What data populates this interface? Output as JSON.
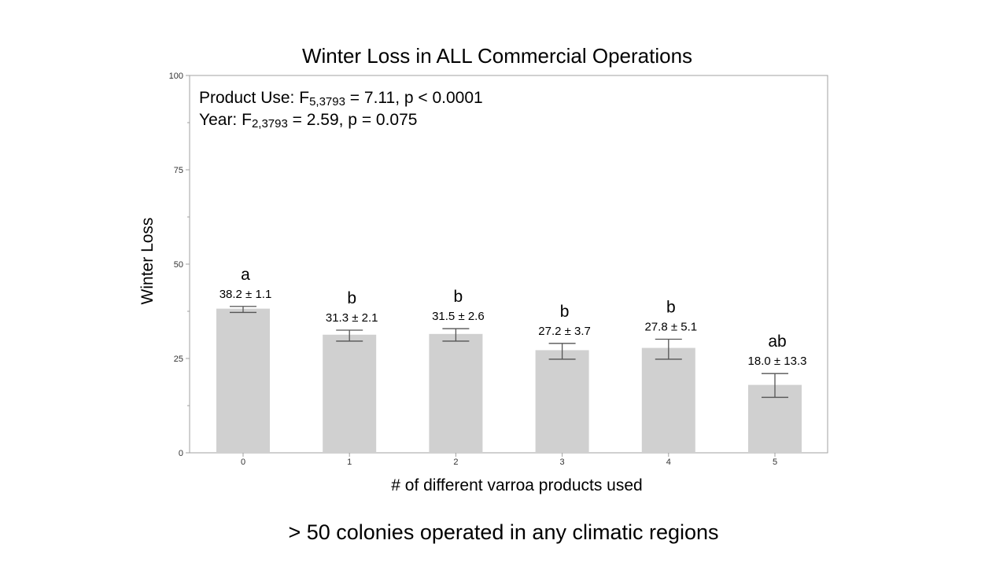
{
  "caption": "> 50 colonies operated in any climatic regions",
  "chart_data": {
    "type": "bar",
    "title": "Winter Loss in ALL Commercial Operations",
    "xlabel": "# of different varroa products used",
    "ylabel": "Winter Loss",
    "ylim": [
      0,
      100
    ],
    "yticks": [
      0,
      25,
      50,
      75,
      100
    ],
    "grid": false,
    "bar_color": "#d0d0d0",
    "categories": [
      "0",
      "1",
      "2",
      "3",
      "4",
      "5"
    ],
    "values": [
      38.2,
      31.3,
      31.5,
      27.2,
      27.8,
      18.0
    ],
    "error_low": [
      37.2,
      29.6,
      29.6,
      24.8,
      24.8,
      14.7
    ],
    "error_high": [
      38.8,
      32.5,
      32.9,
      29.0,
      30.1,
      21.0
    ],
    "letters": [
      "a",
      "b",
      "b",
      "b",
      "b",
      "ab"
    ],
    "data_labels": [
      "38.2 ± 1.1",
      "31.3 ± 2.1",
      "31.5 ± 2.6",
      "27.2 ± 3.7",
      "27.8 ± 5.1",
      "18.0 ± 13.3"
    ],
    "stats": {
      "line1": {
        "prefix": "Product Use: F",
        "sub": "5,3793",
        "suffix": " = 7.11, p < 0.0001"
      },
      "line2": {
        "prefix": "Year: F",
        "sub": "2,3793",
        "suffix": " = 2.59, p = 0.075"
      }
    }
  }
}
